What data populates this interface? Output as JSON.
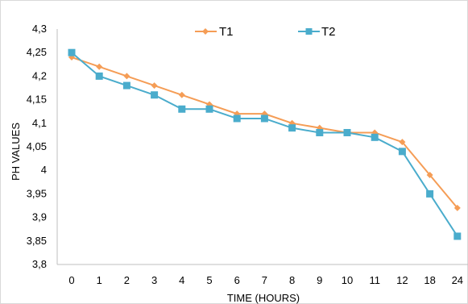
{
  "chart_data": {
    "type": "line",
    "title": "",
    "xlabel": "TIME (HOURS)",
    "ylabel": "PH  VALUES",
    "categories": [
      "0",
      "1",
      "2",
      "3",
      "4",
      "5",
      "6",
      "7",
      "8",
      "9",
      "10",
      "11",
      "12",
      "18",
      "24"
    ],
    "y_ticks": [
      "3,8",
      "3,85",
      "3,9",
      "3,95",
      "4",
      "4,05",
      "4,1",
      "4,15",
      "4,2",
      "4,25",
      "4,3"
    ],
    "ylim": [
      3.8,
      4.3
    ],
    "grid": false,
    "legend_position": "top-center",
    "series": [
      {
        "name": "T1",
        "color": "#f59d56",
        "marker": "diamond",
        "values": [
          4.24,
          4.22,
          4.2,
          4.18,
          4.16,
          4.14,
          4.12,
          4.12,
          4.1,
          4.09,
          4.08,
          4.08,
          4.06,
          3.99,
          3.92
        ]
      },
      {
        "name": "T2",
        "color": "#4aaccc",
        "marker": "square",
        "values": [
          4.25,
          4.2,
          4.18,
          4.16,
          4.13,
          4.13,
          4.11,
          4.11,
          4.09,
          4.08,
          4.08,
          4.07,
          4.04,
          3.95,
          3.86
        ]
      }
    ]
  }
}
